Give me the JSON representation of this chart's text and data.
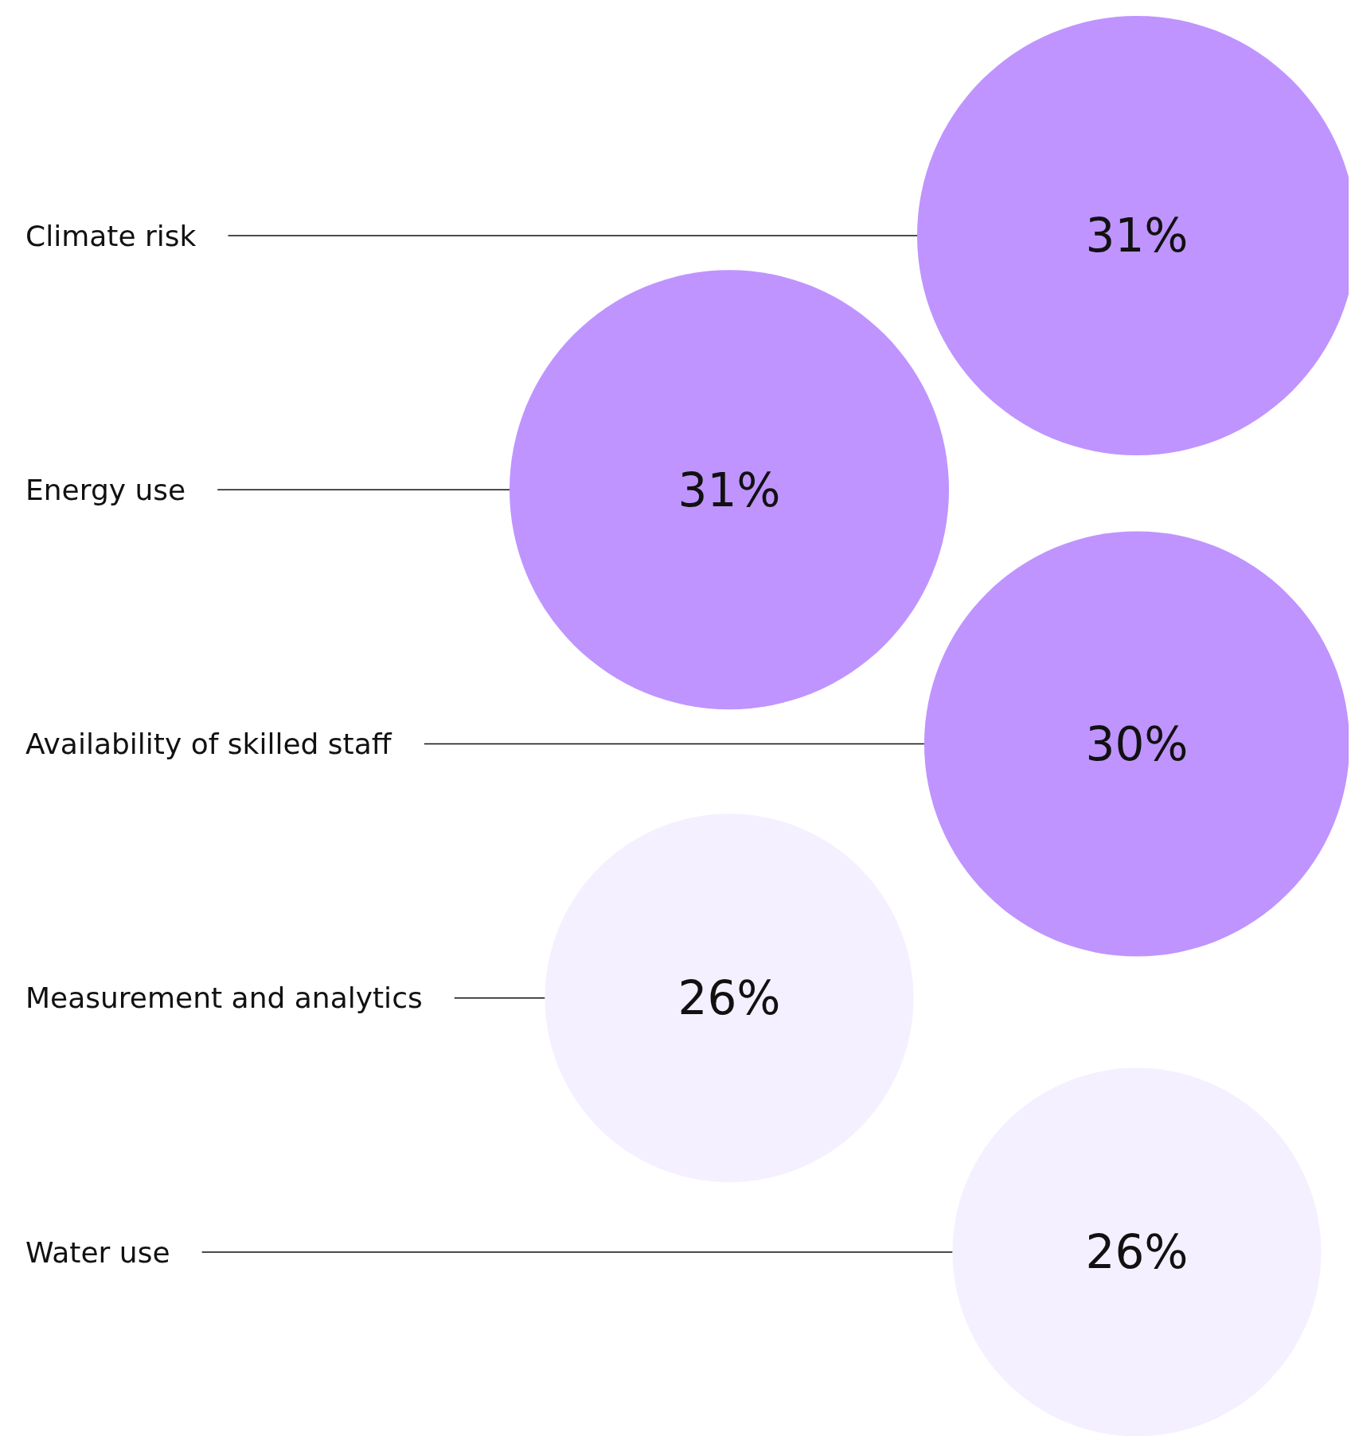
{
  "chart_data": {
    "type": "other",
    "categories": [
      "Climate risk",
      "Energy use",
      "Availability of skilled staff",
      "Measurement and analytics",
      "Water use"
    ],
    "values": [
      31,
      31,
      30,
      26,
      26
    ],
    "colors": [
      "#bf94ff",
      "#bf94ff",
      "#bf94ff",
      "#f4f0ff",
      "#f4f0ff"
    ],
    "value_labels": [
      "31%",
      "31%",
      "30%",
      "26%",
      "26%"
    ]
  }
}
